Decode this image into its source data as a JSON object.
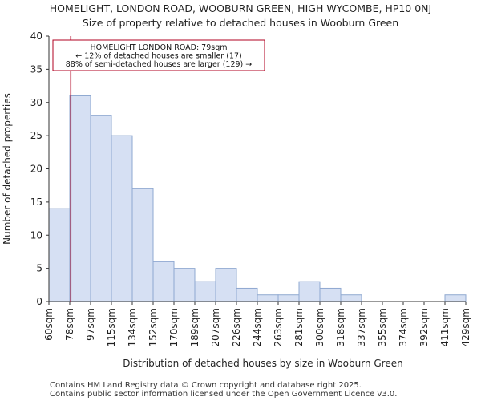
{
  "chart_data": {
    "type": "bar",
    "title": "HOMELIGHT, LONDON ROAD, WOOBURN GREEN, HIGH WYCOMBE, HP10 0NJ",
    "subtitle": "Size of property relative to detached houses in Wooburn Green",
    "xlabel": "Distribution of detached houses by size in Wooburn Green",
    "ylabel": "Number of detached properties",
    "ylim": [
      0,
      40
    ],
    "yticks": [
      0,
      5,
      10,
      15,
      20,
      25,
      30,
      35,
      40
    ],
    "bin_edges": [
      "60sqm",
      "78sqm",
      "97sqm",
      "115sqm",
      "134sqm",
      "152sqm",
      "170sqm",
      "189sqm",
      "207sqm",
      "226sqm",
      "244sqm",
      "263sqm",
      "281sqm",
      "300sqm",
      "318sqm",
      "337sqm",
      "355sqm",
      "374sqm",
      "392sqm",
      "411sqm",
      "429sqm"
    ],
    "values": [
      14,
      31,
      28,
      25,
      17,
      6,
      5,
      3,
      5,
      2,
      1,
      1,
      3,
      2,
      1,
      0,
      0,
      0,
      0,
      1
    ],
    "property_marker": {
      "value": 79,
      "position_bin": 1.05
    },
    "annotation": {
      "line1": "HOMELIGHT LONDON ROAD: 79sqm",
      "line2": "← 12% of detached houses are smaller (17)",
      "line3": "88% of semi-detached houses are larger (129) →"
    },
    "colors": {
      "bar_fill": "#d6e0f3",
      "bar_stroke": "#8fa8d0",
      "marker": "#b00020",
      "axis": "#333333"
    }
  },
  "footer": {
    "line1": "Contains HM Land Registry data © Crown copyright and database right 2025.",
    "line2": "Contains public sector information licensed under the Open Government Licence v3.0."
  }
}
